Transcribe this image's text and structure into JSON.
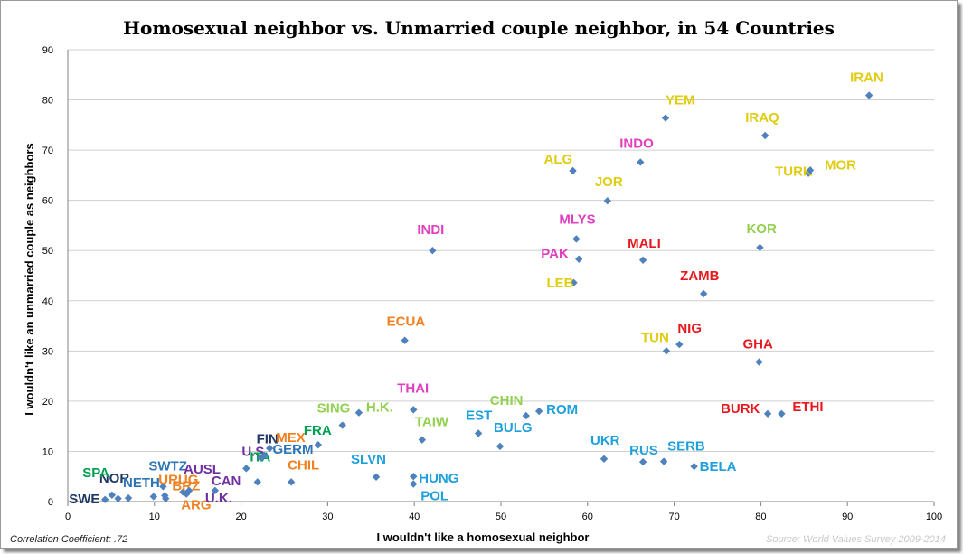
{
  "chart_data": {
    "type": "scatter",
    "title": "Homosexual neighbor vs. Unmarried couple neighbor, in 54 Countries",
    "xlabel": "I wouldn't like a homosexual neighbor",
    "ylabel": "I wouldn't like an unmarried couple as neighbors",
    "xlim": [
      0,
      100
    ],
    "ylim": [
      0,
      90
    ],
    "xticks": [
      0,
      10,
      20,
      30,
      40,
      50,
      60,
      70,
      80,
      90,
      100
    ],
    "yticks": [
      0,
      10,
      20,
      30,
      40,
      50,
      60,
      70,
      80,
      90
    ],
    "grid": "horizontal",
    "marker_color": "#4F81BD",
    "label_colors": {
      "darkblue": "#1F3864",
      "blue": "#2E75B6",
      "green": "#00A050",
      "orange": "#F08020",
      "purple": "#7030A0",
      "red": "#E8191E",
      "cyan": "#1EA0DC",
      "lime": "#92D050",
      "yellow": "#E0CC10",
      "pink": "#E040C0"
    },
    "points": [
      {
        "label": "SWE",
        "x": 4.3,
        "y": 0.4,
        "color": "darkblue"
      },
      {
        "label": "NOR",
        "x": 5.1,
        "y": 1.3,
        "color": "darkblue"
      },
      {
        "label": "",
        "x": 5.8,
        "y": 0.6
      },
      {
        "label": "NETH",
        "x": 7.0,
        "y": 0.7,
        "color": "blue"
      },
      {
        "label": "SPA",
        "x": null,
        "y": null,
        "color": "green"
      },
      {
        "label": "",
        "x": 9.9,
        "y": 1.0
      },
      {
        "label": "SWTZ",
        "x": 11.0,
        "y": 3.0,
        "color": "blue"
      },
      {
        "label": "",
        "x": 11.2,
        "y": 1.2
      },
      {
        "label": "URUG",
        "x": 11.3,
        "y": 0.6,
        "color": "orange"
      },
      {
        "label": "BRZ",
        "x": 13.3,
        "y": 1.9,
        "color": "orange"
      },
      {
        "label": "ARG",
        "x": 13.7,
        "y": 1.5,
        "color": "orange"
      },
      {
        "label": "AUSL",
        "x": 14.0,
        "y": 2.2,
        "color": "purple"
      },
      {
        "label": "CAN",
        "x": 17.0,
        "y": 2.2,
        "color": "purple"
      },
      {
        "label": "U.K.",
        "x": null,
        "y": null,
        "color": "purple"
      },
      {
        "label": "U.S.",
        "x": 20.6,
        "y": 6.6,
        "color": "purple"
      },
      {
        "label": "",
        "x": 21.9,
        "y": 3.9
      },
      {
        "label": "ITA",
        "x": null,
        "y": null,
        "color": "green"
      },
      {
        "label": "FIN",
        "x": 22.3,
        "y": 8.7,
        "color": "darkblue"
      },
      {
        "label": "GERM",
        "x": 22.7,
        "y": 9.2,
        "color": "blue"
      },
      {
        "label": "MEX",
        "x": 23.3,
        "y": 10.6,
        "color": "orange"
      },
      {
        "label": "CHIL",
        "x": 25.8,
        "y": 3.9,
        "color": "orange"
      },
      {
        "label": "FRA",
        "x": 28.9,
        "y": 11.3,
        "color": "green"
      },
      {
        "label": "SING",
        "x": 31.7,
        "y": 15.2,
        "color": "lime"
      },
      {
        "label": "H.K.",
        "x": 33.6,
        "y": 17.7,
        "color": "lime"
      },
      {
        "label": "SLVN",
        "x": 35.6,
        "y": 4.9,
        "color": "cyan"
      },
      {
        "label": "ECUA",
        "x": 38.9,
        "y": 32.1,
        "color": "orange"
      },
      {
        "label": "THAI",
        "x": 39.9,
        "y": 18.3,
        "color": "pink"
      },
      {
        "label": "HUNG",
        "x": 39.9,
        "y": 5.0,
        "color": "cyan"
      },
      {
        "label": "POL",
        "x": 39.9,
        "y": 3.5,
        "color": "cyan"
      },
      {
        "label": "TAIW",
        "x": 40.9,
        "y": 12.3,
        "color": "lime"
      },
      {
        "label": "INDI",
        "x": 42.1,
        "y": 50.0,
        "color": "pink"
      },
      {
        "label": "EST",
        "x": 47.4,
        "y": 13.6,
        "color": "cyan"
      },
      {
        "label": "BULG",
        "x": 49.9,
        "y": 11.0,
        "color": "cyan"
      },
      {
        "label": "CHIN",
        "x": 52.9,
        "y": 17.1,
        "color": "lime"
      },
      {
        "label": "ROM",
        "x": 54.4,
        "y": 18.0,
        "color": "cyan"
      },
      {
        "label": "LEB",
        "x": 58.4,
        "y": 43.6,
        "color": "yellow"
      },
      {
        "label": "ALG",
        "x": 58.3,
        "y": 65.9,
        "color": "yellow"
      },
      {
        "label": "MLYS",
        "x": 58.7,
        "y": 52.3,
        "color": "pink"
      },
      {
        "label": "PAK",
        "x": 59.0,
        "y": 48.3,
        "color": "pink"
      },
      {
        "label": "UKR",
        "x": 61.9,
        "y": 8.5,
        "color": "cyan"
      },
      {
        "label": "JOR",
        "x": 62.3,
        "y": 59.9,
        "color": "yellow"
      },
      {
        "label": "INDO",
        "x": 66.1,
        "y": 67.6,
        "color": "pink"
      },
      {
        "label": "RUS",
        "x": 66.4,
        "y": 7.9,
        "color": "cyan"
      },
      {
        "label": "MALI",
        "x": 66.4,
        "y": 48.1,
        "color": "red"
      },
      {
        "label": "SERB",
        "x": 68.8,
        "y": 8.0,
        "color": "cyan"
      },
      {
        "label": "TUN",
        "x": 69.1,
        "y": 30.0,
        "color": "yellow"
      },
      {
        "label": "YEM",
        "x": 69.0,
        "y": 76.4,
        "color": "yellow"
      },
      {
        "label": "NIG",
        "x": 70.6,
        "y": 31.3,
        "color": "red"
      },
      {
        "label": "BELA",
        "x": 72.3,
        "y": 7.0,
        "color": "cyan"
      },
      {
        "label": "ZAMB",
        "x": 73.4,
        "y": 41.4,
        "color": "red"
      },
      {
        "label": "GHA",
        "x": 79.8,
        "y": 27.8,
        "color": "red"
      },
      {
        "label": "KOR",
        "x": 79.9,
        "y": 50.6,
        "color": "lime"
      },
      {
        "label": "IRAQ",
        "x": 80.5,
        "y": 72.9,
        "color": "yellow"
      },
      {
        "label": "BURK",
        "x": 80.8,
        "y": 17.5,
        "color": "red"
      },
      {
        "label": "ETHI",
        "x": 82.4,
        "y": 17.5,
        "color": "red"
      },
      {
        "label": "TURK",
        "x": 85.5,
        "y": 65.4,
        "color": "yellow"
      },
      {
        "label": "MOR",
        "x": 85.7,
        "y": 66.0,
        "color": "yellow"
      },
      {
        "label": "IRAN",
        "x": 92.5,
        "y": 80.9,
        "color": "yellow"
      }
    ]
  },
  "footer": {
    "correlation": "Correlation Coefficient: .72",
    "source": "Source: World Values Survey 2009-2014"
  }
}
